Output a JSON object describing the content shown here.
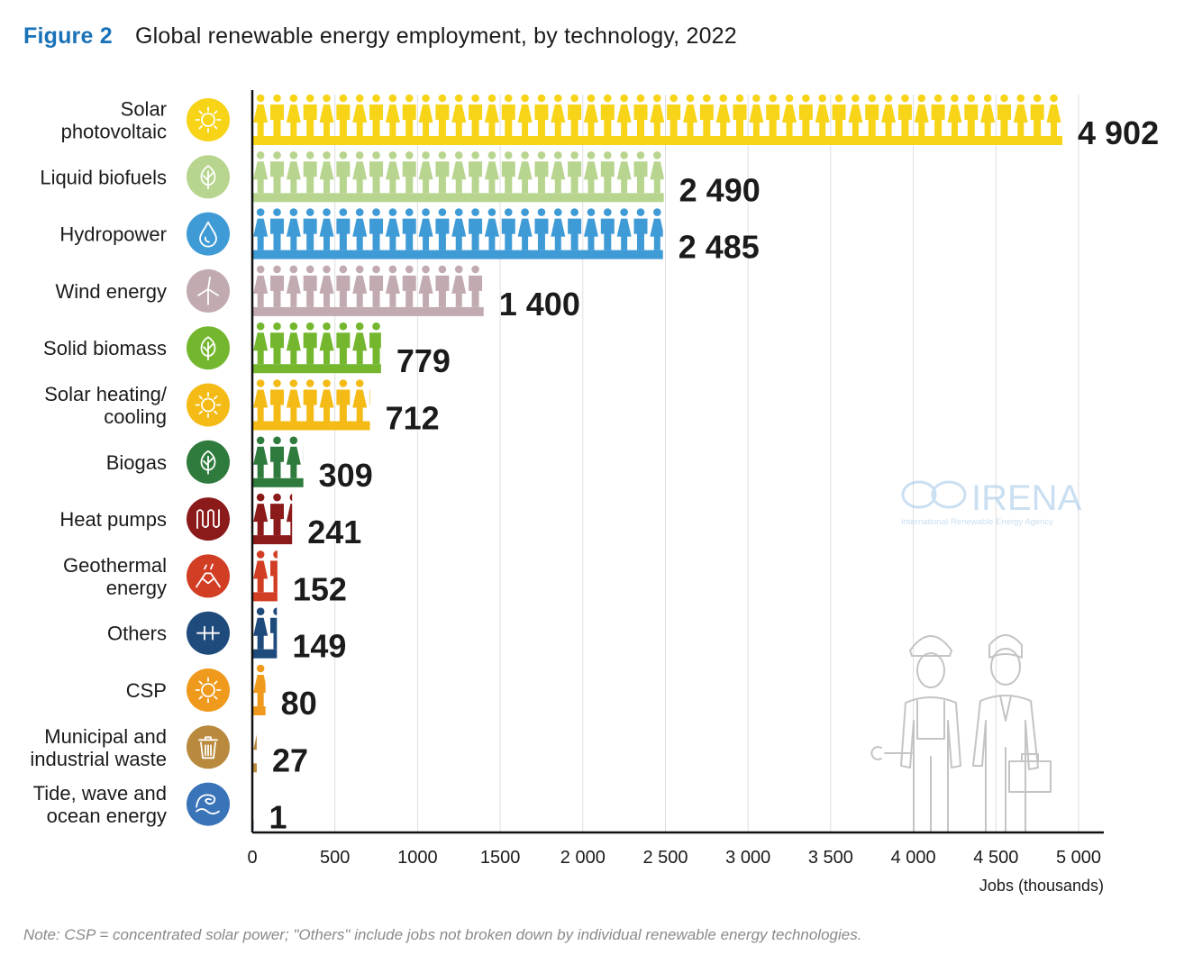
{
  "figure": {
    "label": "Figure 2",
    "title": "Global renewable energy employment, by technology, 2022",
    "note": "Note: CSP = concentrated solar power; \"Others\" include jobs not broken down by individual renewable energy technologies."
  },
  "watermark": {
    "name": "IRENA",
    "subtitle": "International Renewable Energy Agency"
  },
  "chart_data": {
    "type": "bar",
    "orientation": "horizontal",
    "title": "Global renewable energy employment, by technology, 2022",
    "xlabel": "Jobs (thousands)",
    "ylabel": "",
    "xlim": [
      0,
      5000
    ],
    "xticks": [
      0,
      500,
      1000,
      1500,
      2000,
      2500,
      3000,
      3500,
      4000,
      4500,
      5000
    ],
    "xtick_labels": [
      "0",
      "500",
      "1000",
      "1500",
      "2 000",
      "2 500",
      "3 000",
      "3 500",
      "4 000",
      "4 500",
      "5 000"
    ],
    "grid": "vertical",
    "categories": [
      [
        "Solar",
        "photovoltaic"
      ],
      [
        "Liquid biofuels"
      ],
      [
        "Hydropower"
      ],
      [
        "Wind energy"
      ],
      [
        "Solid biomass"
      ],
      [
        "Solar heating/",
        "cooling"
      ],
      [
        "Biogas"
      ],
      [
        "Heat pumps"
      ],
      [
        "Geothermal",
        "energy"
      ],
      [
        "Others"
      ],
      [
        "CSP"
      ],
      [
        "Municipal and",
        "industrial waste"
      ],
      [
        "Tide, wave and",
        "ocean energy"
      ]
    ],
    "values": [
      4902,
      2490,
      2485,
      1400,
      779,
      712,
      309,
      241,
      152,
      149,
      80,
      27,
      1
    ],
    "value_labels": [
      "4 902",
      "2 490",
      "2 485",
      "1 400",
      "779",
      "712",
      "309",
      "241",
      "152",
      "149",
      "80",
      "27",
      "1"
    ],
    "colors": [
      "#f7d417",
      "#b7d58e",
      "#3f9bd6",
      "#c2abb0",
      "#74b72e",
      "#f4bb16",
      "#2f7a3d",
      "#8b1a1a",
      "#d23e24",
      "#1f4b7c",
      "#ef9a1c",
      "#b98a3e",
      "#3a74b8"
    ],
    "icons": [
      "sun-icon",
      "leaf-icon",
      "water-drop-icon",
      "wind-turbine-icon",
      "leaf-icon",
      "sun-icon",
      "leaf-icon",
      "heat-coil-icon",
      "volcano-icon",
      "plus-icon",
      "sun-icon",
      "waste-bin-icon",
      "wave-icon"
    ]
  }
}
